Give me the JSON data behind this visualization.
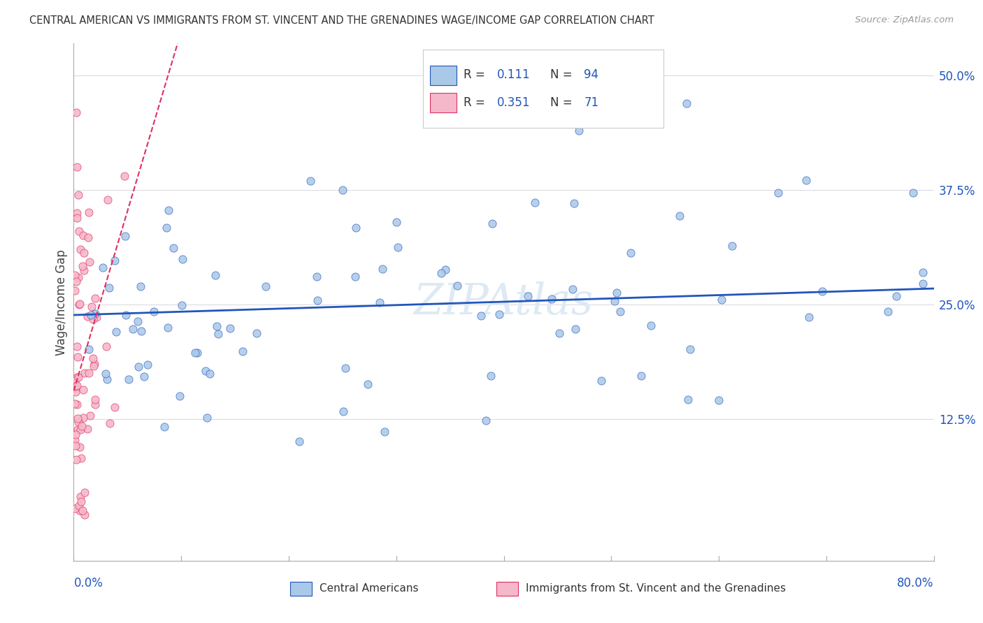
{
  "title": "CENTRAL AMERICAN VS IMMIGRANTS FROM ST. VINCENT AND THE GRENADINES WAGE/INCOME GAP CORRELATION CHART",
  "source": "Source: ZipAtlas.com",
  "ylabel": "Wage/Income Gap",
  "xmin": 0.0,
  "xmax": 0.8,
  "ymin": -0.03,
  "ymax": 0.535,
  "blue_R": 0.111,
  "blue_N": 94,
  "pink_R": 0.351,
  "pink_N": 71,
  "blue_dot_color": "#aac8e8",
  "blue_line_color": "#2255bb",
  "pink_dot_color": "#f5b8ca",
  "pink_line_color": "#e03060",
  "legend_label_blue": "Central Americans",
  "legend_label_pink": "Immigrants from St. Vincent and the Grenadines",
  "watermark": "ZIPAtlas",
  "axis_label_color": "#2255bb",
  "grid_color": "#d8d8e0",
  "title_color": "#333333",
  "source_color": "#999999"
}
